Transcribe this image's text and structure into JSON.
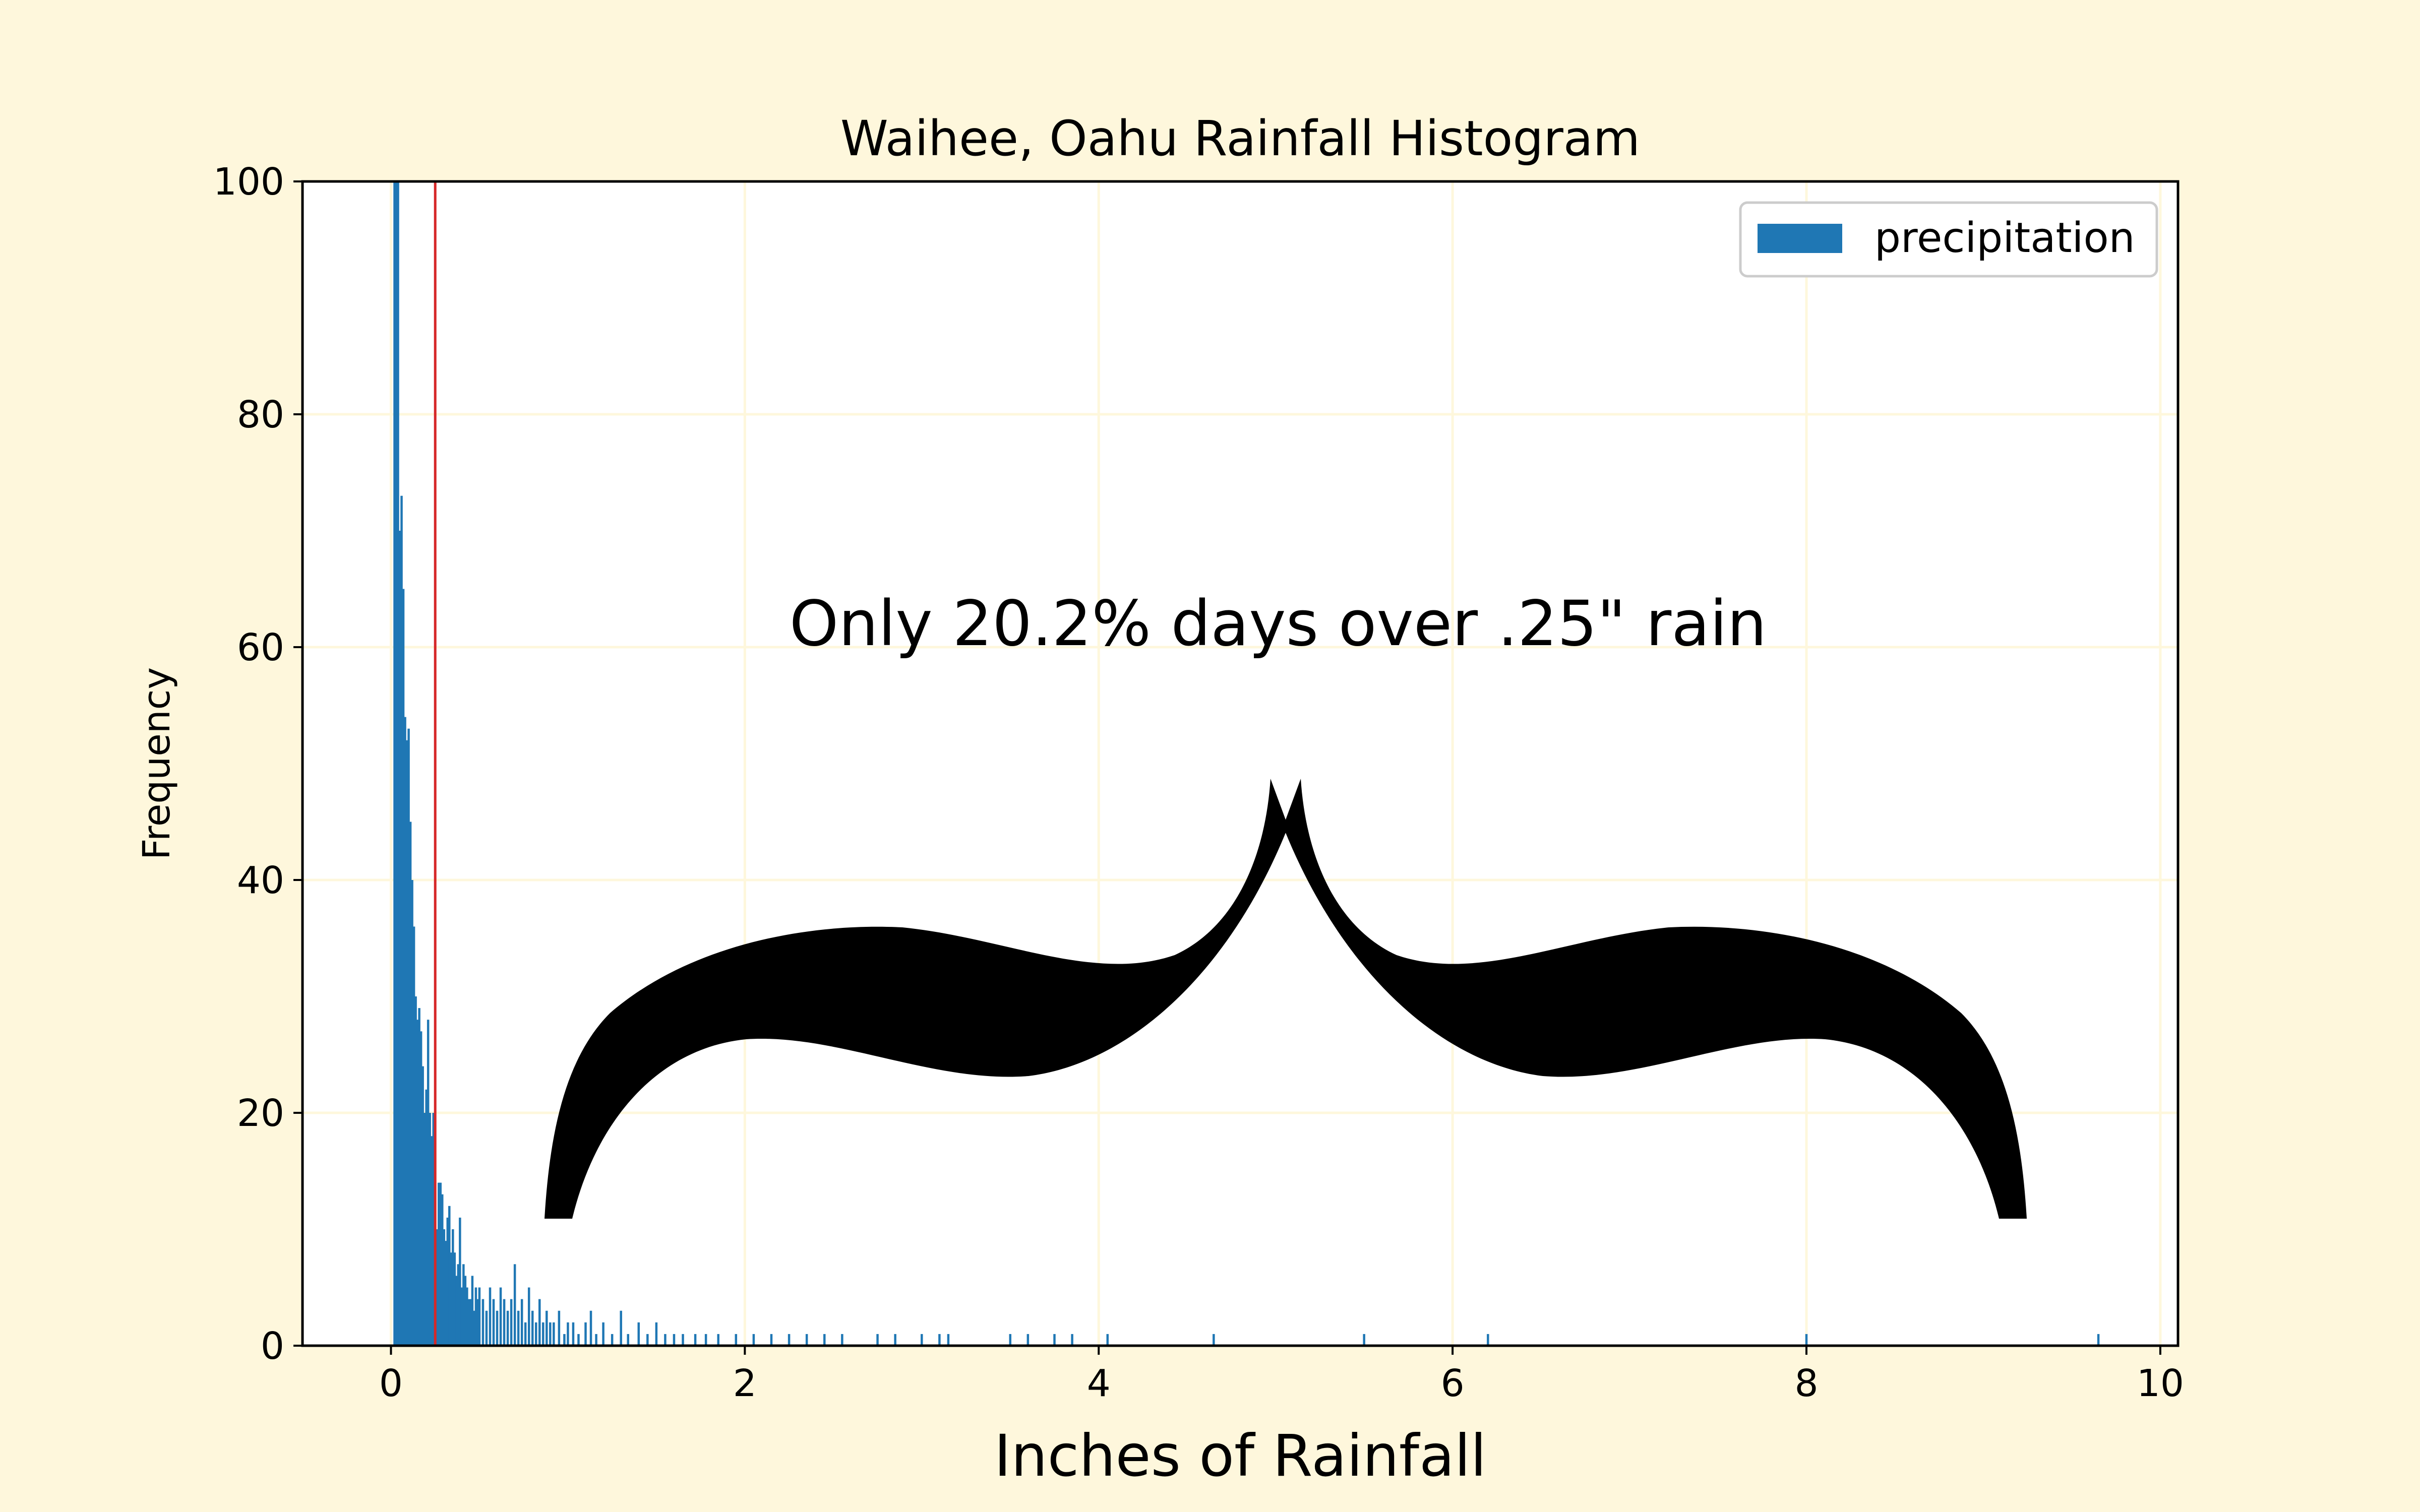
{
  "chart_data": {
    "type": "bar",
    "title": "Waihee, Oahu Rainfall Histogram",
    "xlabel": "Inches of Rainfall",
    "ylabel": "Frequency",
    "xlim": [
      -0.5,
      10.1
    ],
    "ylim": [
      0,
      100
    ],
    "xticks": [
      0,
      2,
      4,
      6,
      8,
      10
    ],
    "yticks": [
      0,
      20,
      40,
      60,
      80,
      100
    ],
    "grid": true,
    "legend": {
      "position": "top-right",
      "entries": [
        "precipitation"
      ]
    },
    "series": [
      {
        "name": "precipitation",
        "bin_width": 0.01,
        "x": [
          0.02,
          0.03,
          0.04,
          0.05,
          0.06,
          0.07,
          0.08,
          0.09,
          0.1,
          0.11,
          0.12,
          0.13,
          0.14,
          0.15,
          0.16,
          0.17,
          0.18,
          0.19,
          0.2,
          0.21,
          0.22,
          0.23,
          0.24,
          0.25,
          0.26,
          0.27,
          0.28,
          0.29,
          0.3,
          0.31,
          0.32,
          0.33,
          0.34,
          0.35,
          0.36,
          0.37,
          0.38,
          0.39,
          0.4,
          0.41,
          0.42,
          0.43,
          0.44,
          0.45,
          0.46,
          0.47,
          0.48,
          0.49,
          0.5,
          0.52,
          0.54,
          0.56,
          0.58,
          0.6,
          0.62,
          0.64,
          0.66,
          0.68,
          0.7,
          0.72,
          0.74,
          0.76,
          0.78,
          0.8,
          0.82,
          0.84,
          0.86,
          0.88,
          0.9,
          0.92,
          0.95,
          0.98,
          1.0,
          1.03,
          1.06,
          1.1,
          1.13,
          1.16,
          1.2,
          1.25,
          1.3,
          1.34,
          1.4,
          1.45,
          1.5,
          1.55,
          1.6,
          1.65,
          1.72,
          1.78,
          1.85,
          1.95,
          2.05,
          2.15,
          2.25,
          2.35,
          2.45,
          2.55,
          2.75,
          2.85,
          3.0,
          3.1,
          3.15,
          3.5,
          3.6,
          3.75,
          3.85,
          4.05,
          4.65,
          5.5,
          6.2,
          8.0,
          9.65
        ],
        "values": [
          100,
          100,
          100,
          70,
          73,
          65,
          54,
          52,
          53,
          45,
          40,
          36,
          30,
          28,
          29,
          27,
          24,
          20,
          22,
          28,
          20,
          18,
          20,
          14,
          10,
          14,
          14,
          13,
          10,
          9,
          11,
          12,
          8,
          10,
          8,
          6,
          7,
          11,
          5,
          7,
          6,
          5,
          4,
          4,
          6,
          3,
          5,
          4,
          5,
          4,
          3,
          5,
          4,
          3,
          5,
          4,
          3,
          4,
          7,
          3,
          4,
          2,
          5,
          3,
          2,
          4,
          2,
          3,
          2,
          2,
          3,
          1,
          2,
          2,
          1,
          2,
          3,
          1,
          2,
          1,
          3,
          1,
          2,
          1,
          2,
          1,
          1,
          1,
          1,
          1,
          1,
          1,
          1,
          1,
          1,
          1,
          1,
          1,
          1,
          1,
          1,
          1,
          1,
          1,
          1,
          1,
          1,
          1,
          1,
          1,
          1,
          1,
          1
        ]
      }
    ],
    "reference_line": {
      "x": 0.25,
      "color": "#d62728"
    },
    "annotation": "Only 20.2% days over .25\" rain",
    "colors": {
      "bar": "#1f77b4",
      "background": "#fef7dc",
      "grid": "#fef7dc",
      "reference_line": "#d62728"
    }
  }
}
